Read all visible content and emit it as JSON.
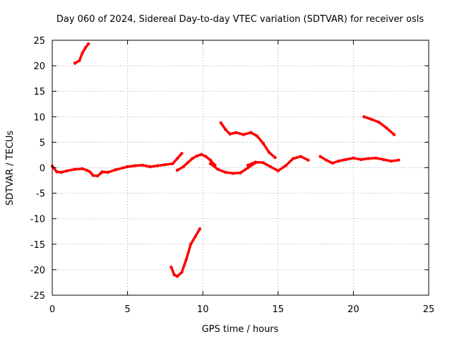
{
  "chart_data": {
    "type": "line",
    "title": "Day 060 of 2024, Sidereal Day-to-day VTEC variation (SDTVAR) for receiver osls",
    "xlabel": "GPS time / hours",
    "ylabel": "SDTVAR / TECUs",
    "xlim": [
      0,
      25
    ],
    "ylim": [
      -25,
      25
    ],
    "xticks": [
      "0",
      "5",
      "10",
      "15",
      "20",
      "25"
    ],
    "xtick_values": [
      0,
      5,
      10,
      15,
      20,
      25
    ],
    "yticks": [
      "25",
      "20",
      "15",
      "10",
      "5",
      "0",
      "-5",
      "-10",
      "-15",
      "-20",
      "-25"
    ],
    "ytick_values": [
      25,
      20,
      15,
      10,
      5,
      0,
      -5,
      -10,
      -15,
      -20,
      -25
    ],
    "grid": true,
    "series_color": "#ff0000",
    "series": [
      {
        "name": "sat-a-high",
        "x": [
          1.5,
          1.8,
          2.0,
          2.2,
          2.4
        ],
        "y": [
          20.5,
          21.0,
          22.5,
          23.5,
          24.3
        ]
      },
      {
        "name": "main-0-3",
        "x": [
          0.0,
          0.3,
          0.6,
          1.0,
          1.5,
          2.0,
          2.3,
          2.5,
          2.7,
          3.0,
          3.3
        ],
        "y": [
          0.3,
          -0.8,
          -0.9,
          -0.6,
          -0.3,
          -0.2,
          -0.5,
          -0.8,
          -1.5,
          -1.6,
          -0.9
        ]
      },
      {
        "name": "main-3-9",
        "x": [
          3.3,
          3.7,
          4.2,
          5.0,
          5.5,
          6.0,
          6.5,
          7.0,
          7.5,
          8.0,
          8.3,
          8.6
        ],
        "y": [
          -0.8,
          -0.9,
          -0.4,
          0.2,
          0.4,
          0.5,
          0.2,
          0.4,
          0.6,
          0.8,
          1.8,
          2.8
        ]
      },
      {
        "name": "main-8-11",
        "x": [
          8.3,
          8.7,
          9.0,
          9.3,
          9.6,
          9.9,
          10.2,
          10.5,
          10.8
        ],
        "y": [
          -0.5,
          0.2,
          1.0,
          1.8,
          2.3,
          2.6,
          2.2,
          1.5,
          0.5
        ]
      },
      {
        "name": "main-10-13",
        "x": [
          10.5,
          11.0,
          11.5,
          12.0,
          12.5,
          13.0,
          13.5
        ],
        "y": [
          0.8,
          -0.3,
          -0.9,
          -1.1,
          -1.0,
          0.0,
          1.0
        ]
      },
      {
        "name": "main-13-17",
        "x": [
          13.0,
          13.5,
          14.0,
          14.5,
          15.0,
          15.5,
          16.0,
          16.5,
          17.0
        ],
        "y": [
          0.5,
          1.1,
          1.0,
          0.2,
          -0.6,
          0.4,
          1.8,
          2.2,
          1.5
        ]
      },
      {
        "name": "main-18-23",
        "x": [
          17.8,
          18.2,
          18.6,
          19.0,
          19.5,
          20.0,
          20.5,
          21.0,
          21.5,
          22.0,
          22.5,
          23.0
        ],
        "y": [
          2.2,
          1.5,
          0.9,
          1.3,
          1.6,
          1.9,
          1.6,
          1.8,
          1.9,
          1.6,
          1.3,
          1.5
        ]
      },
      {
        "name": "sat-b-upper",
        "x": [
          11.2,
          11.5,
          11.8,
          12.2,
          12.7,
          13.2,
          13.6,
          14.0,
          14.4,
          14.8
        ],
        "y": [
          8.8,
          7.5,
          6.6,
          6.9,
          6.5,
          6.9,
          6.2,
          4.8,
          3.0,
          2.0
        ]
      },
      {
        "name": "sat-c-upper",
        "x": [
          20.7,
          21.2,
          21.7,
          22.2,
          22.7
        ],
        "y": [
          10.0,
          9.5,
          8.9,
          7.8,
          6.5
        ]
      },
      {
        "name": "sat-d-low",
        "x": [
          7.9,
          8.1,
          8.3,
          8.6,
          8.9,
          9.2,
          9.5,
          9.8
        ],
        "y": [
          -19.5,
          -21.0,
          -21.3,
          -20.5,
          -18.0,
          -15.0,
          -13.5,
          -12.0
        ]
      }
    ]
  }
}
